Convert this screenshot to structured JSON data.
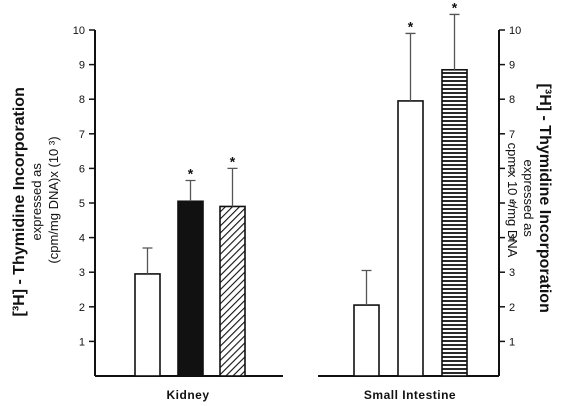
{
  "chart_data": [
    {
      "type": "bar",
      "panel": "kidney",
      "categories": [
        "",
        "",
        ""
      ],
      "values": [
        2.95,
        5.05,
        4.9
      ],
      "errors": [
        0.75,
        0.6,
        1.1
      ],
      "significant": [
        false,
        true,
        true
      ],
      "fills": [
        "white",
        "black",
        "diagonal"
      ],
      "xlabel": "Kidney",
      "ylabel_line1": "[³H] - Thymidine Incorporation",
      "ylabel_line2": "expressed as",
      "ylabel_line3": "(cpm/mg DNA)x (10 ³)",
      "ylim": [
        0,
        10
      ],
      "yticks": [
        1,
        2,
        3,
        4,
        5,
        6,
        7,
        8,
        9,
        10
      ],
      "y_axis_side": "left",
      "significance_marker": "*"
    },
    {
      "type": "bar",
      "panel": "small-intestine",
      "categories": [
        "",
        "",
        ""
      ],
      "values": [
        2.05,
        7.95,
        8.85
      ],
      "errors": [
        1.0,
        1.95,
        1.6
      ],
      "significant": [
        false,
        true,
        true
      ],
      "fills": [
        "white",
        "white",
        "horizontal"
      ],
      "xlabel": "Small Intestine",
      "ylabel_line1": "[³H] - Thymidine Incorporation",
      "ylabel_line2": "expressed as",
      "ylabel_line3": "cpm x 10 ⁴/mg DNA",
      "ylim": [
        0,
        10
      ],
      "yticks": [
        1,
        2,
        3,
        4,
        5,
        6,
        7,
        8,
        9,
        10
      ],
      "y_axis_side": "right",
      "significance_marker": "*"
    }
  ]
}
